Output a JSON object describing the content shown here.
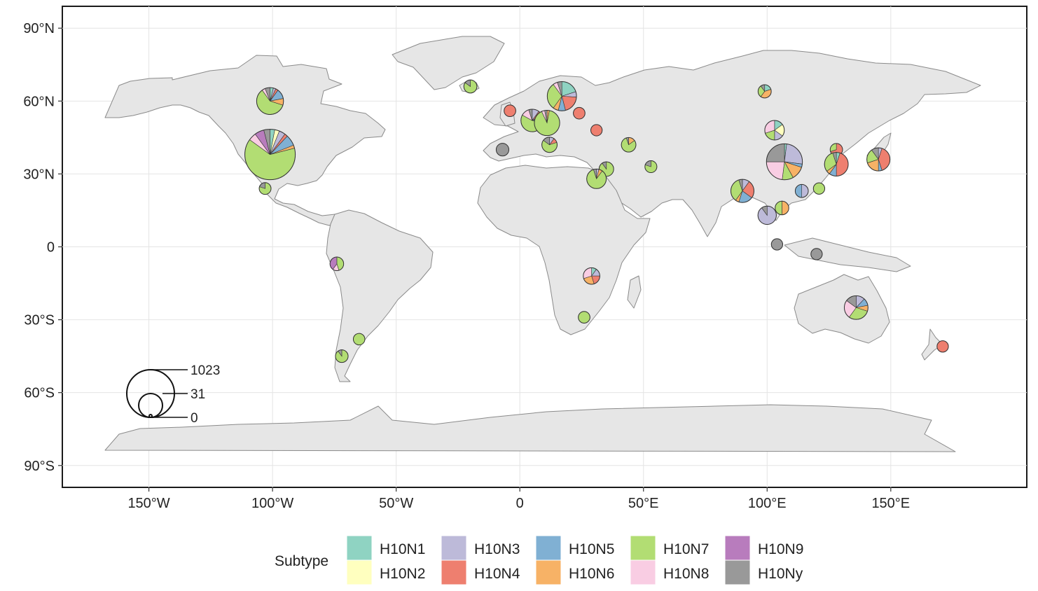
{
  "map": {
    "lon_ticks": [
      "150°W",
      "100°W",
      "50°W",
      "0",
      "50°E",
      "100°E",
      "150°E"
    ],
    "lon_tick_values": [
      -150,
      -100,
      -50,
      0,
      50,
      100,
      150
    ],
    "lat_ticks": [
      "90°N",
      "60°N",
      "30°N",
      "0",
      "30°S",
      "60°S",
      "90°S"
    ],
    "lat_tick_values": [
      90,
      60,
      30,
      0,
      -30,
      -60,
      -90
    ],
    "extent": {
      "lon": [
        -185,
        205
      ],
      "lat": [
        -99,
        99
      ]
    }
  },
  "size_legend": {
    "labels": [
      "1023",
      "31",
      "0"
    ],
    "values": [
      1023,
      31,
      0
    ]
  },
  "legend": {
    "title": "Subtype",
    "items": [
      {
        "label": "H10N1",
        "color": "#8fd3c2"
      },
      {
        "label": "H10N2",
        "color": "#ffffbf"
      },
      {
        "label": "H10N3",
        "color": "#bdbad9"
      },
      {
        "label": "H10N4",
        "color": "#ee7f6f"
      },
      {
        "label": "H10N5",
        "color": "#80b0d3"
      },
      {
        "label": "H10N6",
        "color": "#f7b266"
      },
      {
        "label": "H10N7",
        "color": "#b2dd73"
      },
      {
        "label": "H10N8",
        "color": "#f9cde3"
      },
      {
        "label": "H10N9",
        "color": "#b87cbd"
      },
      {
        "label": "H10Ny",
        "color": "#999999"
      }
    ]
  },
  "pies": [
    {
      "lon": -101,
      "lat": 38,
      "total": 1023,
      "shares": {
        "H10N1": 3,
        "H10N2": 3,
        "H10N3": 4,
        "H10N4": 2,
        "H10N5": 7,
        "H10N6": 2,
        "H10N7": 64,
        "H10N8": 5,
        "H10N9": 6,
        "H10Ny": 4
      }
    },
    {
      "lon": -101,
      "lat": 60,
      "total": 210,
      "shares": {
        "H10N1": 4,
        "H10N3": 3,
        "H10N4": 3,
        "H10N5": 12,
        "H10N6": 8,
        "H10N7": 60,
        "H10N8": 4,
        "H10Ny": 6
      }
    },
    {
      "lon": -103,
      "lat": 24,
      "total": 6,
      "shares": {
        "H10N7": 80,
        "H10Ny": 20
      }
    },
    {
      "lon": -74,
      "lat": -7,
      "total": 20,
      "shares": {
        "H10N7": 45,
        "H10N8": 15,
        "H10N9": 40
      }
    },
    {
      "lon": -65,
      "lat": -38,
      "total": 4,
      "shares": {
        "H10N7": 100
      }
    },
    {
      "lon": -72,
      "lat": -45,
      "total": 12,
      "shares": {
        "H10N7": 90,
        "H10Ny": 10
      }
    },
    {
      "lon": -20,
      "lat": 66,
      "total": 15,
      "shares": {
        "H10N7": 85,
        "H10Ny": 15
      }
    },
    {
      "lon": -7,
      "lat": 40,
      "total": 12,
      "shares": {
        "H10Ny": 100
      }
    },
    {
      "lon": -4,
      "lat": 56,
      "total": 5,
      "shares": {
        "H10N4": 100
      }
    },
    {
      "lon": 5,
      "lat": 52,
      "total": 130,
      "shares": {
        "H10N3": 10,
        "H10N4": 6,
        "H10N5": 8,
        "H10N6": 4,
        "H10N7": 55,
        "H10N8": 12,
        "H10Ny": 5
      }
    },
    {
      "lon": 11,
      "lat": 51,
      "total": 180,
      "shares": {
        "H10N6": 3,
        "H10N7": 90,
        "H10N8": 4,
        "H10Ny": 3
      }
    },
    {
      "lon": 17,
      "lat": 62,
      "total": 260,
      "shares": {
        "H10N1": 20,
        "H10N3": 6,
        "H10N4": 20,
        "H10N5": 8,
        "H10N6": 6,
        "H10N7": 30,
        "H10N8": 5,
        "H10Ny": 5
      }
    },
    {
      "lon": 24,
      "lat": 55,
      "total": 5,
      "shares": {
        "H10N4": 100
      }
    },
    {
      "lon": 31,
      "lat": 48,
      "total": 3,
      "shares": {
        "H10N4": 100
      }
    },
    {
      "lon": 12,
      "lat": 42,
      "total": 35,
      "shares": {
        "H10N3": 10,
        "H10N4": 10,
        "H10N7": 65,
        "H10Ny": 15
      }
    },
    {
      "lon": 44,
      "lat": 42,
      "total": 28,
      "shares": {
        "H10N6": 15,
        "H10N7": 80,
        "H10Ny": 5
      }
    },
    {
      "lon": 35,
      "lat": 32,
      "total": 28,
      "shares": {
        "H10N7": 90,
        "H10Ny": 10
      }
    },
    {
      "lon": 31,
      "lat": 28,
      "total": 85,
      "shares": {
        "H10N3": 4,
        "H10N6": 6,
        "H10N7": 85,
        "H10Ny": 5
      }
    },
    {
      "lon": 53,
      "lat": 33,
      "total": 7,
      "shares": {
        "H10N7": 80,
        "H10Ny": 20
      }
    },
    {
      "lon": 29,
      "lat": -12,
      "total": 48,
      "shares": {
        "H10N1": 10,
        "H10N3": 15,
        "H10N4": 20,
        "H10N6": 25,
        "H10N8": 30
      }
    },
    {
      "lon": 26,
      "lat": -29,
      "total": 5,
      "shares": {
        "H10N7": 100
      }
    },
    {
      "lon": 99,
      "lat": 64,
      "total": 16,
      "shares": {
        "H10N1": 20,
        "H10N6": 40,
        "H10N7": 30,
        "H10Ny": 10
      }
    },
    {
      "lon": 103,
      "lat": 48,
      "total": 85,
      "shares": {
        "H10N1": 15,
        "H10N2": 20,
        "H10N3": 15,
        "H10N7": 20,
        "H10N8": 30
      }
    },
    {
      "lon": 107,
      "lat": 35,
      "total": 430,
      "shares": {
        "H10N1": 2,
        "H10N3": 25,
        "H10N5": 3,
        "H10N6": 12,
        "H10N7": 10,
        "H10N8": 23,
        "H10Ny": 25
      }
    },
    {
      "lon": 128,
      "lat": 40,
      "total": 10,
      "shares": {
        "H10N4": 70,
        "H10N7": 30
      }
    },
    {
      "lon": 128,
      "lat": 34,
      "total": 150,
      "shares": {
        "H10N1": 5,
        "H10N4": 45,
        "H10N5": 10,
        "H10N6": 5,
        "H10N7": 30,
        "H10Ny": 5
      }
    },
    {
      "lon": 145,
      "lat": 36,
      "total": 140,
      "shares": {
        "H10N3": 5,
        "H10N4": 40,
        "H10N5": 5,
        "H10N6": 20,
        "H10N7": 20,
        "H10Ny": 10
      }
    },
    {
      "lon": 90,
      "lat": 23,
      "total": 140,
      "shares": {
        "H10N3": 10,
        "H10N4": 25,
        "H10N5": 20,
        "H10N6": 5,
        "H10N7": 35,
        "H10Ny": 5
      }
    },
    {
      "lon": 100,
      "lat": 13,
      "total": 70,
      "shares": {
        "H10N3": 90,
        "H10Ny": 10
      }
    },
    {
      "lon": 114,
      "lat": 23,
      "total": 15,
      "shares": {
        "H10N3": 50,
        "H10N5": 50
      }
    },
    {
      "lon": 121,
      "lat": 24,
      "total": 3,
      "shares": {
        "H10N7": 100
      }
    },
    {
      "lon": 106,
      "lat": 16,
      "total": 20,
      "shares": {
        "H10N6": 50,
        "H10N7": 50
      }
    },
    {
      "lon": 104,
      "lat": 1,
      "total": 3,
      "shares": {
        "H10Ny": 100
      }
    },
    {
      "lon": 120,
      "lat": -3,
      "total": 3,
      "shares": {
        "H10Ny": 100
      }
    },
    {
      "lon": 136,
      "lat": -25,
      "total": 150,
      "shares": {
        "H10N3": 12,
        "H10N5": 10,
        "H10N6": 8,
        "H10N7": 30,
        "H10N8": 25,
        "H10Ny": 15
      }
    },
    {
      "lon": 171,
      "lat": -41,
      "total": 3,
      "shares": {
        "H10N4": 100
      }
    }
  ]
}
